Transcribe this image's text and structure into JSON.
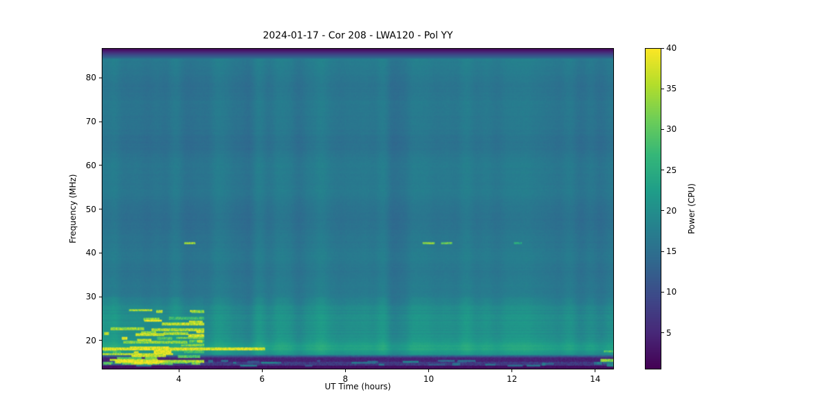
{
  "figure": {
    "background": "#ffffff"
  },
  "chart_data": {
    "type": "heatmap",
    "subtype": "radio-dynamic-spectrum",
    "title": "2024-01-17 - Cor 208 - LWA120 - Pol YY",
    "xlabel": "UT Time (hours)",
    "ylabel": "Frequency (MHz)",
    "colorbar_label": "Power (CPU)",
    "x_range_hours": [
      2.15,
      14.45
    ],
    "y_range_mhz": [
      13.4,
      86.8
    ],
    "value_range": [
      0.5,
      40
    ],
    "x_ticks": [
      4,
      6,
      8,
      10,
      12,
      14
    ],
    "y_ticks": [
      20,
      30,
      40,
      50,
      60,
      70,
      80
    ],
    "colorbar_ticks": [
      5,
      10,
      15,
      20,
      25,
      30,
      35,
      40
    ],
    "grid": false,
    "colormap": "viridis",
    "colormap_stops": [
      "#440154",
      "#482878",
      "#3e4989",
      "#31688e",
      "#26828e",
      "#1f9e89",
      "#35b779",
      "#6ece58",
      "#b5de2b",
      "#fde725"
    ],
    "background_power": 17.3,
    "row_profile": {
      "base": 17.3,
      "dips": [
        {
          "f": 78,
          "amp": 1.5,
          "w": 3.0
        },
        {
          "f": 71,
          "amp": 0.9,
          "w": 2.0
        },
        {
          "f": 65,
          "amp": 1.9,
          "w": 2.6
        },
        {
          "f": 57,
          "amp": 0.7,
          "w": 2.0
        },
        {
          "f": 51,
          "amp": 1.0,
          "w": 2.0
        },
        {
          "f": 47,
          "amp": 1.8,
          "w": 2.4
        },
        {
          "f": 42,
          "amp": 0.9,
          "w": 1.6
        },
        {
          "f": 36,
          "amp": 1.1,
          "w": 2.0
        },
        {
          "f": 31,
          "amp": 0.7,
          "w": 1.5
        }
      ],
      "bumps": [
        {
          "f": 26,
          "amp": 1.0,
          "w": 2.2
        },
        {
          "f": 22,
          "amp": 2.4,
          "w": 4.0
        },
        {
          "f": 18.3,
          "amp": 4.2,
          "w": 1.2
        }
      ]
    },
    "rfi_lines": [
      {
        "f": 18.15,
        "t0": 2.15,
        "t1": 6.05,
        "power": 38,
        "w": 0.35
      },
      {
        "f": 16.95,
        "t0": 2.15,
        "t1": 3.85,
        "power": 36,
        "w": 0.3
      },
      {
        "f": 42.3,
        "t0": 4.12,
        "t1": 4.38,
        "power": 34,
        "w": 0.25
      },
      {
        "f": 42.3,
        "t0": 9.85,
        "t1": 10.12,
        "power": 33,
        "w": 0.25
      },
      {
        "f": 42.35,
        "t0": 10.3,
        "t1": 10.55,
        "power": 31,
        "w": 0.25
      },
      {
        "f": 42.3,
        "t0": 12.05,
        "t1": 12.22,
        "power": 24,
        "w": 0.25
      },
      {
        "f": 15.6,
        "t0": 14.12,
        "t1": 14.45,
        "power": 33,
        "w": 0.3
      },
      {
        "f": 17.7,
        "t0": 14.2,
        "t1": 14.45,
        "power": 29,
        "w": 0.3
      }
    ],
    "rfi_burst_region": {
      "t0": 2.15,
      "t1": 4.6,
      "f0": 14.8,
      "f1": 28.5,
      "count": 60,
      "power_min": 27,
      "power_max": 40
    },
    "bottom_speckle": {
      "f0": 14.4,
      "f1": 15.6,
      "count": 40,
      "power_min": 10,
      "power_max": 19
    }
  }
}
